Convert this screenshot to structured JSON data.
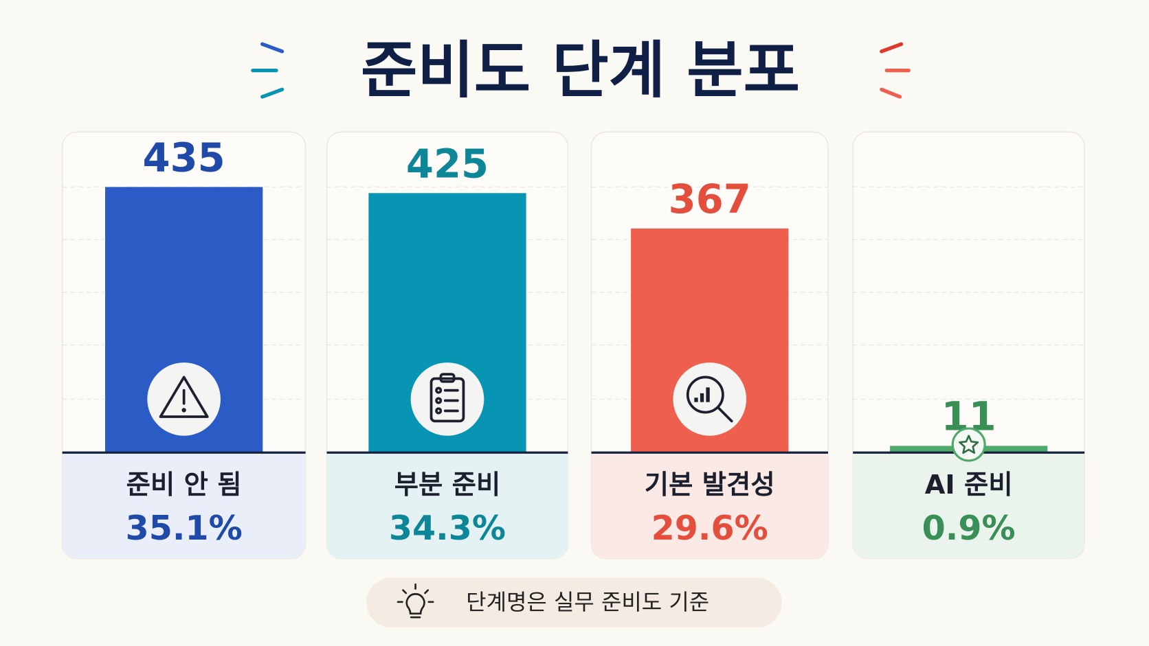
{
  "chart_data": {
    "type": "bar",
    "title": "준비도 단계 분포",
    "categories": [
      "준비 안 됨",
      "부분 준비",
      "기본 발견성",
      "AI 준비"
    ],
    "values": [
      435,
      425,
      367,
      11
    ],
    "colors": [
      "#2b5bc4",
      "#0894b3",
      "#ef5f4e",
      "#4fa96b"
    ],
    "percentages": [
      35.1,
      34.3,
      29.6,
      0.9
    ],
    "percentage_labels": [
      "35.1%",
      "34.3%",
      "29.6%",
      "0.9%"
    ],
    "ylim": [
      0,
      500
    ],
    "note": "단계명은 실무 준비도 기준"
  }
}
